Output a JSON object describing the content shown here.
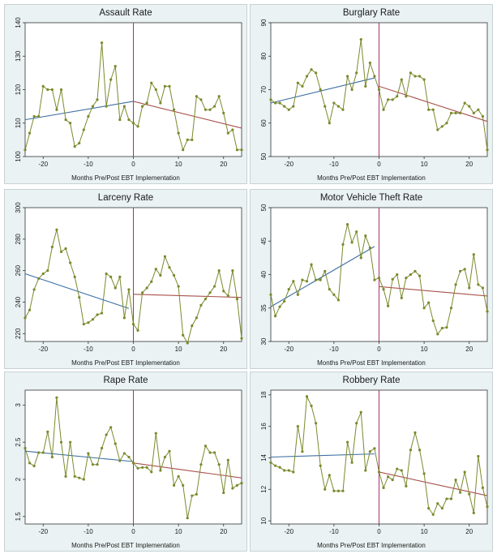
{
  "xlabel": "Months Pre/Post EBT Implementation",
  "colors": {
    "panel_bg": "#eaf2f3",
    "plot_bg": "#ffffff",
    "series": "#7a8a2c",
    "marker": "#7a8a2c",
    "pre_fit": "#3d6fa3",
    "post_fit": "#a8514c",
    "cutoff": "#a8306e"
  },
  "chart_data": [
    {
      "type": "line",
      "title": "Assault Rate",
      "xlim": [
        -24,
        24
      ],
      "xticks": [
        -20,
        -10,
        0,
        10,
        20
      ],
      "ylim": [
        100,
        140
      ],
      "yticks": [
        100,
        110,
        120,
        130,
        140
      ],
      "x": [
        -24,
        -23,
        -22,
        -21,
        -20,
        -19,
        -18,
        -17,
        -16,
        -15,
        -14,
        -13,
        -12,
        -11,
        -10,
        -9,
        -8,
        -7,
        -6,
        -5,
        -4,
        -3,
        -2,
        -1,
        0,
        1,
        2,
        3,
        4,
        5,
        6,
        7,
        8,
        9,
        10,
        11,
        12,
        13,
        14,
        15,
        16,
        17,
        18,
        19,
        20,
        21,
        22,
        23,
        24
      ],
      "y": [
        102,
        107,
        112,
        112,
        121,
        120,
        120,
        114,
        120,
        111,
        110,
        103,
        104,
        108,
        112,
        115,
        117,
        134,
        115,
        123,
        127,
        111,
        115,
        111,
        110,
        109,
        115,
        116,
        122,
        120,
        116,
        121,
        121,
        114,
        107,
        102,
        105,
        105,
        118,
        117,
        114,
        114,
        115,
        118,
        113,
        107,
        108,
        102,
        102
      ],
      "pre_fit": [
        [
          -24,
          111
        ],
        [
          0,
          116.5
        ]
      ],
      "post_fit": [
        [
          0,
          116.5
        ],
        [
          24,
          108.5
        ]
      ]
    },
    {
      "type": "line",
      "title": "Burglary Rate",
      "xlim": [
        -24,
        24
      ],
      "xticks": [
        -20,
        -10,
        0,
        10,
        20
      ],
      "ylim": [
        50,
        90
      ],
      "yticks": [
        50,
        60,
        70,
        80,
        90
      ],
      "x": [
        -24,
        -23,
        -22,
        -21,
        -20,
        -19,
        -18,
        -17,
        -16,
        -15,
        -14,
        -13,
        -12,
        -11,
        -10,
        -9,
        -8,
        -7,
        -6,
        -5,
        -4,
        -3,
        -2,
        -1,
        0,
        1,
        2,
        3,
        4,
        5,
        6,
        7,
        8,
        9,
        10,
        11,
        12,
        13,
        14,
        15,
        16,
        17,
        18,
        19,
        20,
        21,
        22,
        23,
        24
      ],
      "y": [
        67,
        66,
        66,
        65,
        64,
        65,
        72,
        71,
        74,
        76,
        75,
        70,
        65,
        60,
        66,
        65,
        64,
        74,
        70,
        75,
        85,
        71,
        78,
        74,
        70,
        64,
        67,
        67,
        68,
        73,
        68,
        75,
        74,
        74,
        73,
        64,
        64,
        58,
        59,
        60,
        63,
        63,
        63,
        66,
        65,
        63,
        64,
        62,
        52
      ],
      "pre_fit": [
        [
          -24,
          66
        ],
        [
          -1,
          73.5
        ]
      ],
      "post_fit": [
        [
          0,
          71
        ],
        [
          24,
          60.5
        ]
      ]
    },
    {
      "type": "line",
      "title": "Larceny Rate",
      "xlim": [
        -24,
        24
      ],
      "xticks": [
        -20,
        -10,
        0,
        10,
        20
      ],
      "ylim": [
        215,
        300
      ],
      "yticks": [
        220,
        240,
        260,
        280,
        300
      ],
      "x": [
        -24,
        -23,
        -22,
        -21,
        -20,
        -19,
        -18,
        -17,
        -16,
        -15,
        -14,
        -13,
        -12,
        -11,
        -10,
        -9,
        -8,
        -7,
        -6,
        -5,
        -4,
        -3,
        -2,
        -1,
        0,
        1,
        2,
        3,
        4,
        5,
        6,
        7,
        8,
        9,
        10,
        11,
        12,
        13,
        14,
        15,
        16,
        17,
        18,
        19,
        20,
        21,
        22,
        23,
        24
      ],
      "y": [
        230,
        235,
        248,
        255,
        258,
        260,
        275,
        286,
        272,
        274,
        265,
        256,
        243,
        226,
        227,
        229,
        232,
        233,
        258,
        256,
        249,
        256,
        230,
        248,
        226,
        222,
        246,
        249,
        253,
        261,
        257,
        269,
        262,
        257,
        250,
        219,
        214,
        225,
        230,
        238,
        242,
        246,
        250,
        260,
        247,
        244,
        260,
        242,
        217
      ],
      "pre_fit": [
        [
          -24,
          258
        ],
        [
          -1,
          236
        ]
      ],
      "post_fit": [
        [
          0,
          245
        ],
        [
          24,
          243
        ]
      ]
    },
    {
      "type": "line",
      "title": "Motor Vehicle Theft Rate",
      "xlim": [
        -24,
        24
      ],
      "xticks": [
        -20,
        -10,
        0,
        10,
        20
      ],
      "ylim": [
        30,
        50
      ],
      "yticks": [
        30,
        35,
        40,
        45,
        50
      ],
      "x": [
        -24,
        -23,
        -22,
        -21,
        -20,
        -19,
        -18,
        -17,
        -16,
        -15,
        -14,
        -13,
        -12,
        -11,
        -10,
        -9,
        -8,
        -7,
        -6,
        -5,
        -4,
        -3,
        -2,
        -1,
        0,
        1,
        2,
        3,
        4,
        5,
        6,
        7,
        8,
        9,
        10,
        11,
        12,
        13,
        14,
        15,
        16,
        17,
        18,
        19,
        20,
        21,
        22,
        23,
        24
      ],
      "y": [
        37,
        33.8,
        35.2,
        36,
        37.8,
        39,
        37,
        39.2,
        39,
        41.5,
        39.2,
        39.2,
        40.5,
        37.8,
        37,
        36.2,
        44.5,
        47.5,
        44.8,
        46.4,
        42.5,
        45.8,
        44,
        39.2,
        39.5,
        37.8,
        35.3,
        39.3,
        40,
        36.5,
        39.5,
        40,
        40.5,
        39.8,
        35,
        35.8,
        33.1,
        31.1,
        32,
        32.1,
        35,
        38.5,
        40.5,
        40.8,
        38,
        43,
        38.5,
        38,
        34.5
      ],
      "pre_fit": [
        [
          -24,
          35.2
        ],
        [
          -1,
          44.2
        ]
      ],
      "post_fit": [
        [
          0,
          38.2
        ],
        [
          24,
          36.8
        ]
      ]
    },
    {
      "type": "line",
      "title": "Rape Rate",
      "xlim": [
        -24,
        24
      ],
      "xticks": [
        -20,
        -10,
        0,
        10,
        20
      ],
      "ylim": [
        1.4,
        3.2
      ],
      "yticks": [
        1.5,
        2,
        2.5,
        3
      ],
      "x": [
        -24,
        -23,
        -22,
        -21,
        -20,
        -19,
        -18,
        -17,
        -16,
        -15,
        -14,
        -13,
        -12,
        -11,
        -10,
        -9,
        -8,
        -7,
        -6,
        -5,
        -4,
        -3,
        -2,
        -1,
        0,
        1,
        2,
        3,
        4,
        5,
        6,
        7,
        8,
        9,
        10,
        11,
        12,
        13,
        14,
        15,
        16,
        17,
        18,
        19,
        20,
        21,
        22,
        23,
        24
      ],
      "y": [
        2.42,
        2.22,
        2.18,
        2.36,
        2.36,
        2.64,
        2.3,
        3.1,
        2.5,
        2.04,
        2.5,
        2.04,
        2.02,
        2,
        2.35,
        2.2,
        2.2,
        2.42,
        2.6,
        2.7,
        2.48,
        2.25,
        2.35,
        2.3,
        2.22,
        2.15,
        2.16,
        2.16,
        2.1,
        2.62,
        2.12,
        2.3,
        2.38,
        1.92,
        2.04,
        1.92,
        1.48,
        1.78,
        1.8,
        2.2,
        2.45,
        2.36,
        2.36,
        2.2,
        1.82,
        2.26,
        1.88,
        1.92,
        1.95
      ],
      "pre_fit": [
        [
          -24,
          2.38
        ],
        [
          0,
          2.24
        ]
      ],
      "post_fit": [
        [
          0,
          2.22
        ],
        [
          24,
          2.02
        ]
      ]
    },
    {
      "type": "line",
      "title": "Robbery Rate",
      "xlim": [
        -24,
        24
      ],
      "xticks": [
        -20,
        -10,
        0,
        10,
        20
      ],
      "ylim": [
        9.8,
        18.3
      ],
      "yticks": [
        10,
        12,
        14,
        16,
        18
      ],
      "x": [
        -24,
        -23,
        -22,
        -21,
        -20,
        -19,
        -18,
        -17,
        -16,
        -15,
        -14,
        -13,
        -12,
        -11,
        -10,
        -9,
        -8,
        -7,
        -6,
        -5,
        -4,
        -3,
        -2,
        -1,
        0,
        1,
        2,
        3,
        4,
        5,
        6,
        7,
        8,
        9,
        10,
        11,
        12,
        13,
        14,
        15,
        16,
        17,
        18,
        19,
        20,
        21,
        22,
        23,
        24
      ],
      "y": [
        13.7,
        13.5,
        13.4,
        13.2,
        13.2,
        13.1,
        16,
        14.4,
        17.9,
        17.3,
        16.2,
        13.5,
        12,
        12.9,
        11.9,
        11.9,
        11.9,
        15,
        13.7,
        16.2,
        16.9,
        13.2,
        14.4,
        14.6,
        13.1,
        12.1,
        12.8,
        12.6,
        13.3,
        13.2,
        12.2,
        14.5,
        15.6,
        14.5,
        13,
        10.8,
        10.4,
        11.1,
        10.8,
        11.4,
        11.4,
        12.6,
        11.8,
        13.1,
        11.7,
        10.5,
        14.1,
        12.1,
        10.9
      ],
      "pre_fit": [
        [
          -24,
          14.05
        ],
        [
          -1,
          14.25
        ]
      ],
      "post_fit": [
        [
          0,
          13.1
        ],
        [
          24,
          11.6
        ]
      ]
    }
  ]
}
